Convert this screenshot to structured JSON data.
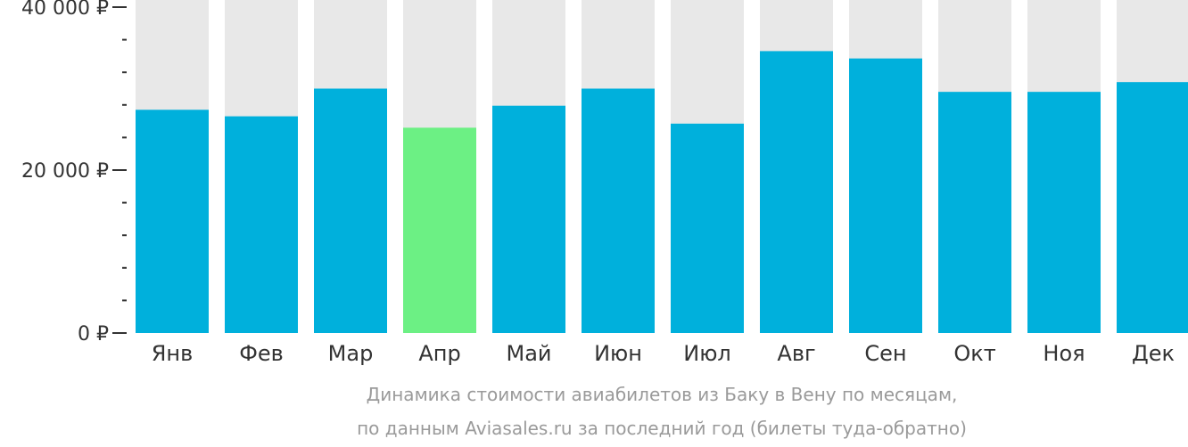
{
  "chart_data": {
    "type": "bar",
    "categories": [
      "Янв",
      "Фев",
      "Мар",
      "Апр",
      "Май",
      "Июн",
      "Июл",
      "Авг",
      "Сен",
      "Окт",
      "Ноя",
      "Дек"
    ],
    "values": [
      27400,
      26600,
      30000,
      25200,
      27900,
      30000,
      25700,
      34600,
      33700,
      29600,
      29600,
      30800
    ],
    "highlight_index": 3,
    "ylim": [
      0,
      40000
    ],
    "yticks": [
      {
        "value": 0,
        "label": "0 ₽"
      },
      {
        "value": 20000,
        "label": "20 000 ₽"
      },
      {
        "value": 40000,
        "label": "40 000 ₽"
      }
    ],
    "minor_tick_step": 4000,
    "grid": false,
    "legend": "none",
    "title": "",
    "xlabel": "",
    "ylabel": "",
    "caption_lines": [
      "Динамика стоимости авиабилетов из Баку в Вену по месяцам,",
      "по данным Aviasales.ru за последний год (билеты туда-обратно)"
    ],
    "colors": {
      "bar": "#00b0dc",
      "highlight": "#6cf084",
      "track": "#e8e8e8",
      "axis": "#333333",
      "caption": "#9a9a9a"
    }
  }
}
